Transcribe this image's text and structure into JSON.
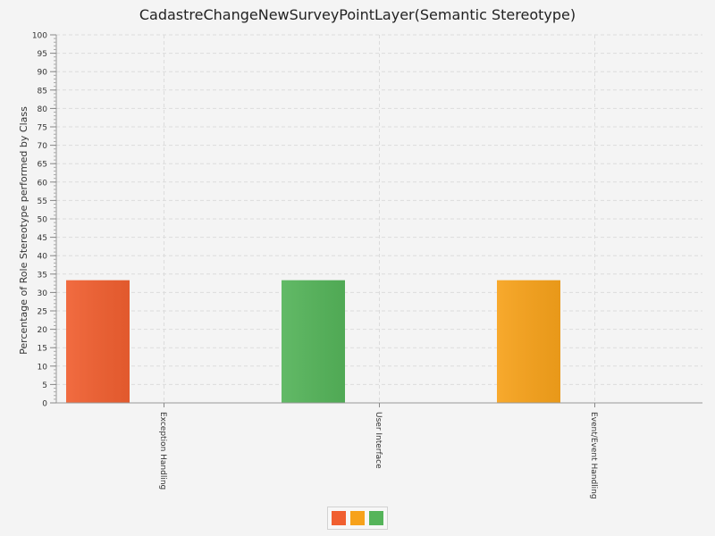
{
  "chart_data": {
    "type": "bar",
    "title": "CadastreChangeNewSurveyPointLayer(Semantic Stereotype)",
    "xlabel": "",
    "ylabel": "Percentage of Role Stereotype performed by Class",
    "categories": [
      "Exception Handling",
      "User Interface",
      "Event/Event Handling"
    ],
    "values": [
      33.33,
      33.33,
      33.33
    ],
    "colors": [
      "#f05f30",
      "#55b45a",
      "#f7a21b"
    ],
    "ylim": [
      0,
      100
    ],
    "y_tick_step": 5,
    "y_ticks": [
      "0",
      "5",
      "10",
      "15",
      "20",
      "25",
      "30",
      "35",
      "40",
      "45",
      "50",
      "55",
      "60",
      "65",
      "70",
      "75",
      "80",
      "85",
      "90",
      "95",
      "100"
    ],
    "grid": true,
    "legend": {
      "placement": "bottom-center",
      "swatches": [
        "#f05f30",
        "#f7a21b",
        "#55b45a"
      ]
    }
  }
}
